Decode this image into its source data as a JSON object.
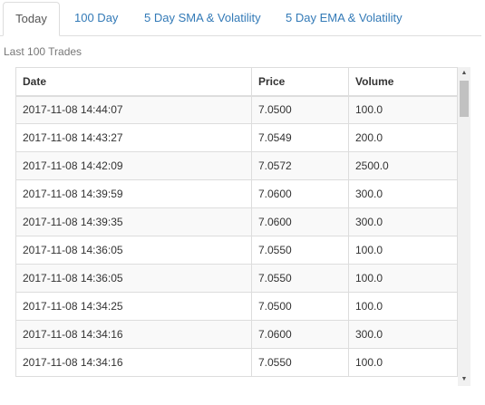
{
  "tabs": [
    {
      "label": "Today",
      "active": true
    },
    {
      "label": "100 Day",
      "active": false
    },
    {
      "label": "5 Day SMA & Volatility",
      "active": false
    },
    {
      "label": "5 Day EMA & Volatility",
      "active": false
    }
  ],
  "caption": "Last 100 Trades",
  "table": {
    "headers": [
      "Date",
      "Price",
      "Volume"
    ],
    "rows": [
      [
        "2017-11-08 14:44:07",
        "7.0500",
        "100.0"
      ],
      [
        "2017-11-08 14:43:27",
        "7.0549",
        "200.0"
      ],
      [
        "2017-11-08 14:42:09",
        "7.0572",
        "2500.0"
      ],
      [
        "2017-11-08 14:39:59",
        "7.0600",
        "300.0"
      ],
      [
        "2017-11-08 14:39:35",
        "7.0600",
        "300.0"
      ],
      [
        "2017-11-08 14:36:05",
        "7.0550",
        "100.0"
      ],
      [
        "2017-11-08 14:36:05",
        "7.0550",
        "100.0"
      ],
      [
        "2017-11-08 14:34:25",
        "7.0500",
        "100.0"
      ],
      [
        "2017-11-08 14:34:16",
        "7.0600",
        "300.0"
      ],
      [
        "2017-11-08 14:34:16",
        "7.0550",
        "100.0"
      ]
    ]
  },
  "scrollbar": {
    "up_icon": "triangle-up-icon",
    "down_icon": "triangle-down-icon",
    "up_glyph": "▲",
    "down_glyph": "▼"
  }
}
